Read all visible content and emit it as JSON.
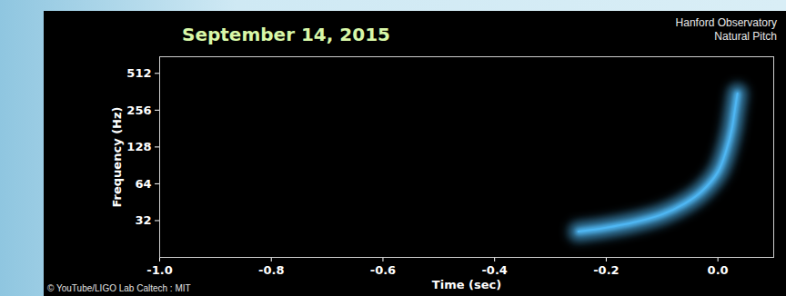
{
  "chart_data": {
    "type": "line",
    "title": "September 14, 2015",
    "subtitle": [
      "Hanford Observatory",
      "Natural Pitch"
    ],
    "caption": "© YouTube/LIGO Lab Caltech : MIT",
    "x_label": "Time (sec)",
    "y_label": "Frequency (Hz)",
    "log": "y",
    "x": [
      -0.25,
      -0.2,
      -0.15,
      -0.1,
      -0.06,
      -0.03,
      0.0,
      0.015,
      0.025,
      0.03,
      0.035
    ],
    "values": [
      26,
      28,
      31,
      36,
      44,
      55,
      80,
      120,
      180,
      250,
      350
    ],
    "color": "#4fb6f2",
    "xlim": [
      -1.0,
      0.1
    ],
    "xticks": [
      {
        "value": -1.0,
        "label": "-1.0"
      },
      -0.8,
      -0.6,
      -0.4,
      -0.2,
      {
        "value": 0.0,
        "label": "0.0"
      }
    ],
    "ylim": [
      16,
      700
    ],
    "yticks": [
      32,
      64,
      128,
      256,
      512
    ]
  }
}
